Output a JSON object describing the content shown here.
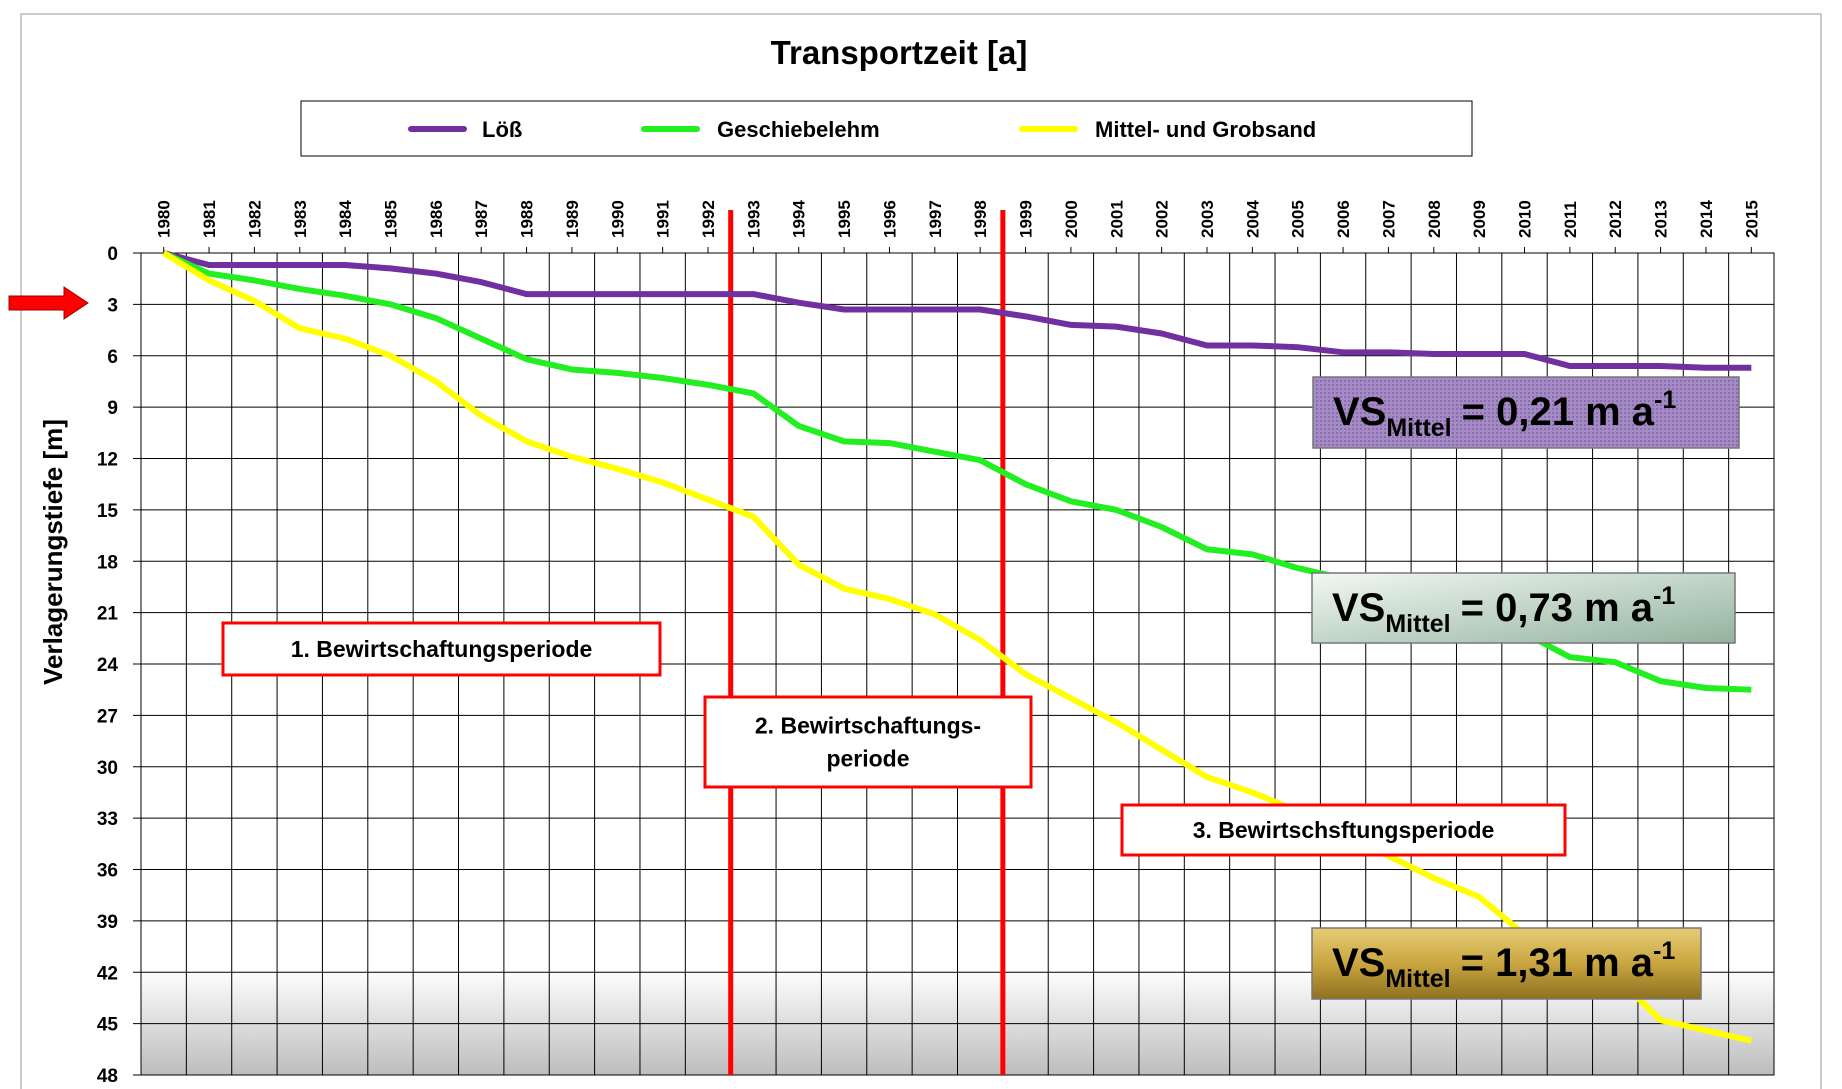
{
  "chart_data": {
    "type": "line",
    "title": "Transportzeit [a]",
    "y_label": "Verlagerungstiefe [m]",
    "x": [
      1980,
      1981,
      1982,
      1983,
      1984,
      1985,
      1986,
      1987,
      1988,
      1989,
      1990,
      1991,
      1992,
      1993,
      1994,
      1995,
      1996,
      1997,
      1998,
      1999,
      2000,
      2001,
      2002,
      2003,
      2004,
      2005,
      2006,
      2007,
      2008,
      2009,
      2010,
      2011,
      2012,
      2013,
      2014,
      2015
    ],
    "xlim": [
      1979.5,
      2015.5
    ],
    "xticks": [
      1980,
      1981,
      1982,
      1983,
      1984,
      1985,
      1986,
      1987,
      1988,
      1989,
      1990,
      1991,
      1992,
      1993,
      1994,
      1995,
      1996,
      1997,
      1998,
      1999,
      2000,
      2001,
      2002,
      2003,
      2004,
      2005,
      2006,
      2007,
      2008,
      2009,
      2010,
      2011,
      2012,
      2013,
      2014,
      2015
    ],
    "ylim": [
      0,
      48
    ],
    "y_inverted": true,
    "yticks": [
      0,
      3,
      6,
      9,
      12,
      15,
      18,
      21,
      24,
      27,
      30,
      33,
      36,
      39,
      42,
      45,
      48
    ],
    "grid": true,
    "legend": "top",
    "series": [
      {
        "name": "Löß",
        "color": "#7030a0",
        "values": [
          0,
          0.7,
          0.7,
          0.7,
          0.7,
          0.9,
          1.2,
          1.7,
          2.4,
          2.4,
          2.4,
          2.4,
          2.4,
          2.4,
          2.9,
          3.3,
          3.3,
          3.3,
          3.3,
          3.7,
          4.2,
          4.3,
          4.7,
          5.4,
          5.4,
          5.5,
          5.8,
          5.8,
          5.9,
          5.9,
          5.9,
          6.6,
          6.6,
          6.6,
          6.7,
          6.7
        ]
      },
      {
        "name": "Geschiebelehm",
        "color": "#22ee22",
        "values": [
          0,
          1.2,
          1.6,
          2.1,
          2.5,
          3.0,
          3.8,
          5.0,
          6.2,
          6.8,
          7.0,
          7.3,
          7.7,
          8.2,
          10.1,
          11.0,
          11.1,
          11.6,
          12.1,
          13.5,
          14.5,
          15.0,
          16.0,
          17.3,
          17.6,
          18.4,
          19.0,
          19.8,
          20.6,
          21.4,
          22.2,
          23.6,
          23.9,
          25.0,
          25.4,
          25.5
        ]
      },
      {
        "name": "Mittel- und Grobsand",
        "color": "#ffff00",
        "values": [
          0,
          1.6,
          2.8,
          4.4,
          5.0,
          6.0,
          7.5,
          9.5,
          11.0,
          11.9,
          12.6,
          13.4,
          14.4,
          15.4,
          18.2,
          19.6,
          20.2,
          21.1,
          22.6,
          24.6,
          26.0,
          27.4,
          29.0,
          30.6,
          31.5,
          32.6,
          33.8,
          35.2,
          36.5,
          37.6,
          39.8,
          41.0,
          42.2,
          44.8,
          45.4,
          46.0
        ]
      }
    ],
    "period_boundaries": [
      1992.5,
      1998.5
    ],
    "boundary_color": "#ff0000",
    "periods": [
      {
        "lines": [
          "1. Bewirtschaftungsperiode"
        ]
      },
      {
        "lines": [
          "2. Bewirtschaftungs-",
          "periode"
        ]
      },
      {
        "lines": [
          "3. Bewirtschsftungsperiode"
        ]
      }
    ],
    "rates": [
      {
        "main": "VS",
        "sub": "Mittel",
        "text": "= 0,21 m a",
        "sup": "-1"
      },
      {
        "main": "VS",
        "sub": "Mittel",
        "text": "= 0,73 m a",
        "sup": "-1"
      },
      {
        "main": "VS",
        "sub": "Mittel",
        "text": "= 1,31 m a",
        "sup": "-1"
      }
    ]
  }
}
